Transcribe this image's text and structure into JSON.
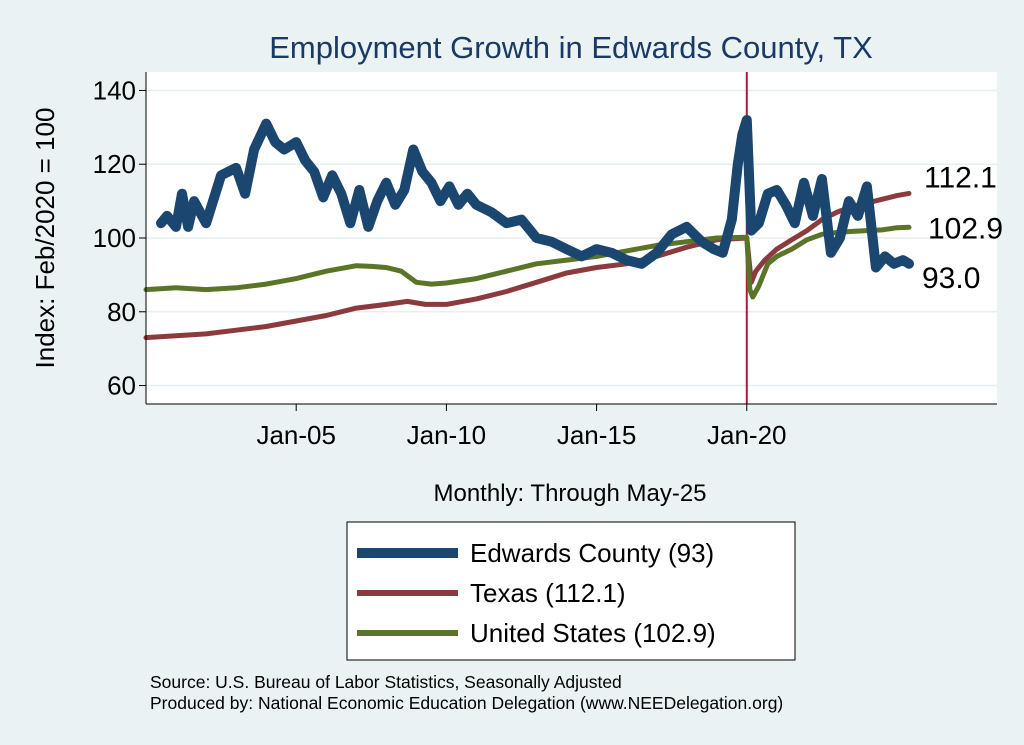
{
  "chart_data": {
    "type": "line",
    "title": "Employment Growth in Edwards  County, TX",
    "xlabel": "Monthly: Through May-25",
    "ylabel": "Index: Feb/2020 = 100",
    "ylim": [
      55,
      145
    ],
    "xlim": [
      2000.0,
      2028.33
    ],
    "yticks": [
      60,
      80,
      100,
      120,
      140
    ],
    "xticks": [
      {
        "label": "Jan-05",
        "value": 2005.0
      },
      {
        "label": "Jan-10",
        "value": 2010.0
      },
      {
        "label": "Jan-15",
        "value": 2015.0
      },
      {
        "label": "Jan-20",
        "value": 2020.0
      }
    ],
    "reference_line": {
      "x": 2020.0,
      "color": "#b5173a"
    },
    "series": [
      {
        "name": "Edwards  County",
        "legend": "Edwards  County (93)",
        "end_label": "93.0",
        "color": "#1b4670",
        "x": [
          2000.5,
          2000.7,
          2001.0,
          2001.2,
          2001.4,
          2001.6,
          2002.0,
          2002.5,
          2003.0,
          2003.3,
          2003.6,
          2004.0,
          2004.3,
          2004.6,
          2005.0,
          2005.3,
          2005.6,
          2005.9,
          2006.2,
          2006.5,
          2006.8,
          2007.1,
          2007.4,
          2007.7,
          2008.0,
          2008.3,
          2008.6,
          2008.9,
          2009.2,
          2009.5,
          2009.8,
          2010.1,
          2010.4,
          2010.7,
          2011.0,
          2011.5,
          2012.0,
          2012.5,
          2013.0,
          2013.5,
          2014.0,
          2014.5,
          2015.0,
          2015.5,
          2016.0,
          2016.5,
          2017.0,
          2017.5,
          2018.0,
          2018.5,
          2018.9,
          2019.2,
          2019.5,
          2019.7,
          2019.85,
          2020.0,
          2020.15,
          2020.4,
          2020.7,
          2021.0,
          2021.3,
          2021.6,
          2021.9,
          2022.2,
          2022.5,
          2022.8,
          2023.1,
          2023.4,
          2023.7,
          2024.0,
          2024.3,
          2024.6,
          2024.9,
          2025.2,
          2025.4
        ],
        "values": [
          104,
          106,
          103,
          112,
          103,
          110,
          104,
          117,
          119,
          112,
          124,
          131,
          126,
          124,
          126,
          121,
          118,
          111,
          117,
          112,
          104,
          113,
          103,
          110,
          115,
          109,
          113,
          124,
          118,
          115,
          110,
          114,
          109,
          112,
          109,
          107,
          104,
          105,
          100,
          99,
          97,
          95,
          97,
          96,
          94,
          93,
          96,
          101,
          103,
          99,
          97,
          96,
          105,
          120,
          128,
          132,
          102,
          104,
          112,
          113,
          109,
          104,
          115,
          106,
          116,
          96,
          100,
          110,
          106,
          114,
          92,
          95,
          93,
          94,
          93
        ]
      },
      {
        "name": "Texas",
        "legend": "Texas (112.1)",
        "end_label": "112.1",
        "color": "#8b3b3d",
        "x": [
          2000.0,
          2001.0,
          2002.0,
          2003.0,
          2004.0,
          2005.0,
          2006.0,
          2007.0,
          2008.0,
          2008.7,
          2009.3,
          2010.0,
          2011.0,
          2012.0,
          2013.0,
          2014.0,
          2015.0,
          2016.0,
          2017.0,
          2018.0,
          2019.0,
          2020.0,
          2020.15,
          2020.3,
          2020.6,
          2021.0,
          2021.5,
          2022.0,
          2022.5,
          2023.0,
          2023.5,
          2024.0,
          2024.5,
          2025.0,
          2025.4
        ],
        "values": [
          73,
          73.5,
          74,
          75,
          76,
          77.5,
          79,
          81,
          82,
          82.8,
          82,
          82,
          83.5,
          85.5,
          88,
          90.5,
          92,
          93,
          95,
          97.5,
          99.5,
          100,
          88,
          91,
          94,
          97,
          99.5,
          102,
          105,
          107,
          108.5,
          109.5,
          110.5,
          111.5,
          112.1
        ]
      },
      {
        "name": "United States",
        "legend": "United States (102.9)",
        "end_label": "102.9",
        "color": "#5a7428",
        "x": [
          2000.0,
          2001.0,
          2002.0,
          2003.0,
          2004.0,
          2005.0,
          2006.0,
          2007.0,
          2007.5,
          2008.0,
          2008.5,
          2009.0,
          2009.5,
          2010.0,
          2011.0,
          2012.0,
          2013.0,
          2014.0,
          2015.0,
          2016.0,
          2017.0,
          2018.0,
          2019.0,
          2020.0,
          2020.1,
          2020.2,
          2020.4,
          2020.7,
          2021.0,
          2021.5,
          2022.0,
          2022.5,
          2023.0,
          2023.5,
          2024.0,
          2024.5,
          2025.0,
          2025.4
        ],
        "values": [
          86,
          86.5,
          86,
          86.5,
          87.5,
          89,
          91,
          92.5,
          92.3,
          92,
          91,
          88,
          87.5,
          87.8,
          89,
          91,
          93,
          94,
          95,
          96.5,
          98,
          99,
          100,
          100.2,
          86,
          84,
          87,
          93,
          95,
          97,
          99.5,
          101,
          101.5,
          101.8,
          102,
          102.2,
          102.8,
          102.9
        ]
      }
    ],
    "legend_position": "bottom"
  },
  "source": {
    "line1": "Source: U.S. Bureau of Labor Statistics, Seasonally Adjusted",
    "line2": "Produced by: National Economic Education Delegation (www.NEEDelegation.org)"
  }
}
